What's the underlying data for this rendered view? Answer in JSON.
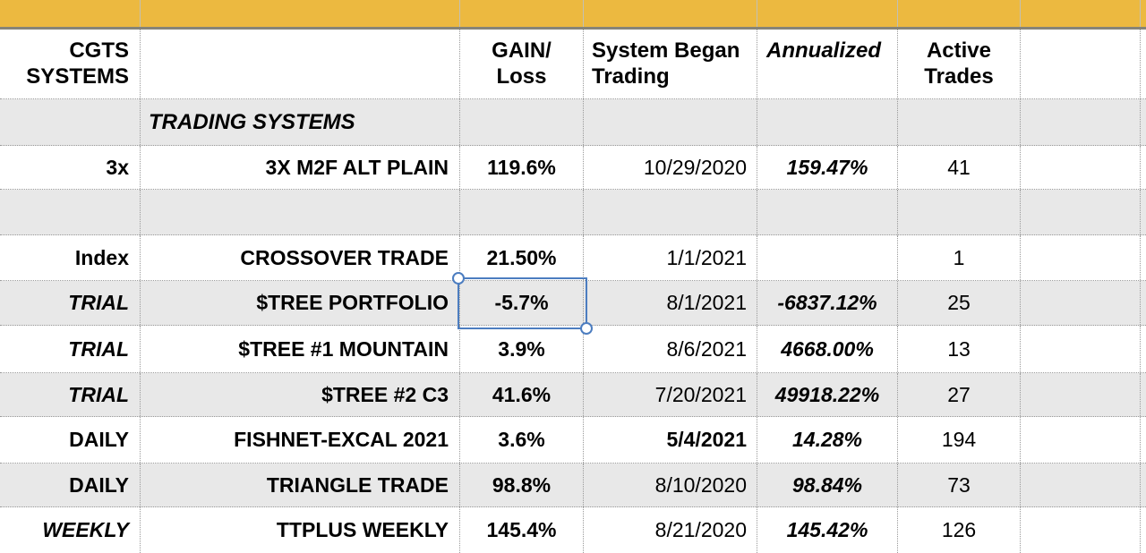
{
  "spreadsheet": {
    "band_color": "#ECB940",
    "selection_color": "#4C7DC0",
    "alt_row_color": "#E8E8E8"
  },
  "header_row": {
    "cgts_systems": "CGTS\nSYSTEMS",
    "name_col": "",
    "gain_loss": "GAIN/\nLoss",
    "system_began_trading": "System Began\nTrading",
    "annualized": "Annualized",
    "active_trades": "Active\nTrades"
  },
  "section_row": {
    "label": "TRADING SYSTEMS"
  },
  "rows": [
    {
      "system": "3x",
      "name": "3X M2F ALT PLAIN",
      "gain_loss": "119.6%",
      "began": "10/29/2020",
      "annualized": "159.47%",
      "active_trades": "41"
    },
    {
      "system": "",
      "name": "",
      "gain_loss": "",
      "began": "",
      "annualized": "",
      "active_trades": ""
    },
    {
      "system": "Index",
      "name": "CROSSOVER TRADE",
      "gain_loss": "21.50%",
      "began": "1/1/2021",
      "annualized": "",
      "active_trades": "1"
    },
    {
      "system": "TRIAL",
      "name": "$TREE PORTFOLIO",
      "gain_loss": "-5.7%",
      "began": "8/1/2021",
      "annualized": "-6837.12%",
      "active_trades": "25"
    },
    {
      "system": "TRIAL",
      "name": "$TREE #1 MOUNTAIN",
      "gain_loss": "3.9%",
      "began": "8/6/2021",
      "annualized": "4668.00%",
      "active_trades": "13"
    },
    {
      "system": "TRIAL",
      "name": "$TREE #2 C3",
      "gain_loss": "41.6%",
      "began": "7/20/2021",
      "annualized": "49918.22%",
      "active_trades": "27"
    },
    {
      "system": "DAILY",
      "name": "FISHNET-EXCAL 2021",
      "gain_loss": "3.6%",
      "began": "5/4/2021",
      "annualized": "14.28%",
      "active_trades": "194"
    },
    {
      "system": "DAILY",
      "name": "TRIANGLE TRADE",
      "gain_loss": "98.8%",
      "began": "8/10/2020",
      "annualized": "98.84%",
      "active_trades": "73"
    },
    {
      "system": "WEEKLY",
      "name": "TTPLUS WEEKLY",
      "gain_loss": "145.4%",
      "began": "8/21/2020",
      "annualized": "145.42%",
      "active_trades": "126"
    }
  ],
  "selection": {
    "cell_value": "-5.7%"
  }
}
